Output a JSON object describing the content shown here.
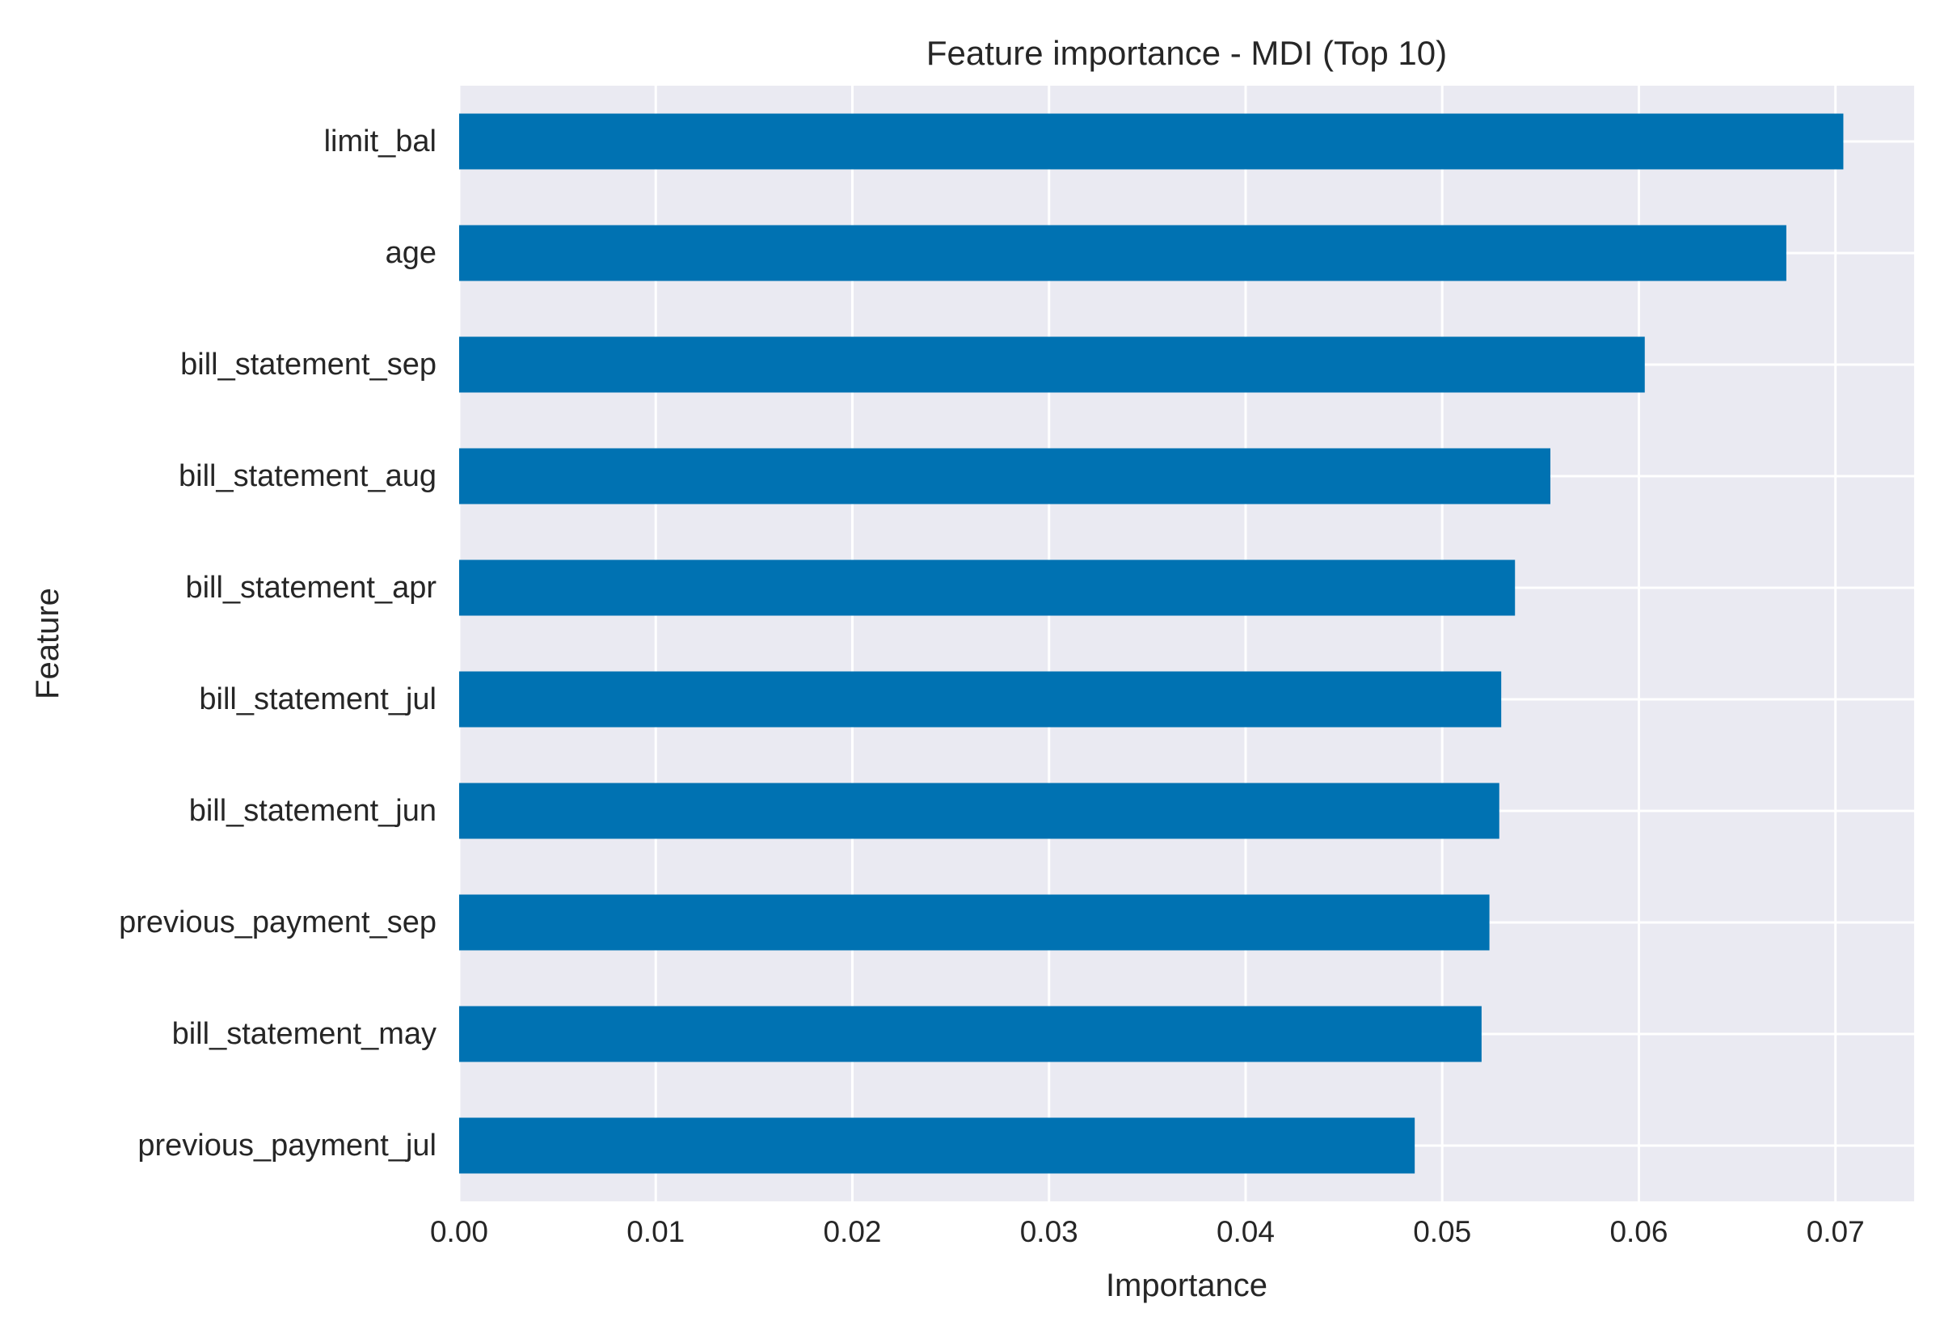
{
  "chart_data": {
    "type": "bar",
    "orientation": "horizontal",
    "title": "Feature importance - MDI (Top 10)",
    "xlabel": "Importance",
    "ylabel": "Feature",
    "categories": [
      "limit_bal",
      "age",
      "bill_statement_sep",
      "bill_statement_aug",
      "bill_statement_apr",
      "bill_statement_jul",
      "bill_statement_jun",
      "previous_payment_sep",
      "bill_statement_may",
      "previous_payment_jul"
    ],
    "values": [
      0.0704,
      0.0675,
      0.0603,
      0.0555,
      0.0537,
      0.053,
      0.0529,
      0.0524,
      0.052,
      0.0486
    ],
    "xlim": [
      0,
      0.074
    ],
    "xticks": [
      0.0,
      0.01,
      0.02,
      0.03,
      0.04,
      0.05,
      0.06,
      0.07
    ],
    "xtick_labels": [
      "0.00",
      "0.01",
      "0.02",
      "0.03",
      "0.04",
      "0.05",
      "0.06",
      "0.07"
    ],
    "grid": true,
    "colors": {
      "bar": "#0072b2",
      "plot_background": "#eaeaf2",
      "grid": "#ffffff",
      "text": "#262626"
    }
  }
}
